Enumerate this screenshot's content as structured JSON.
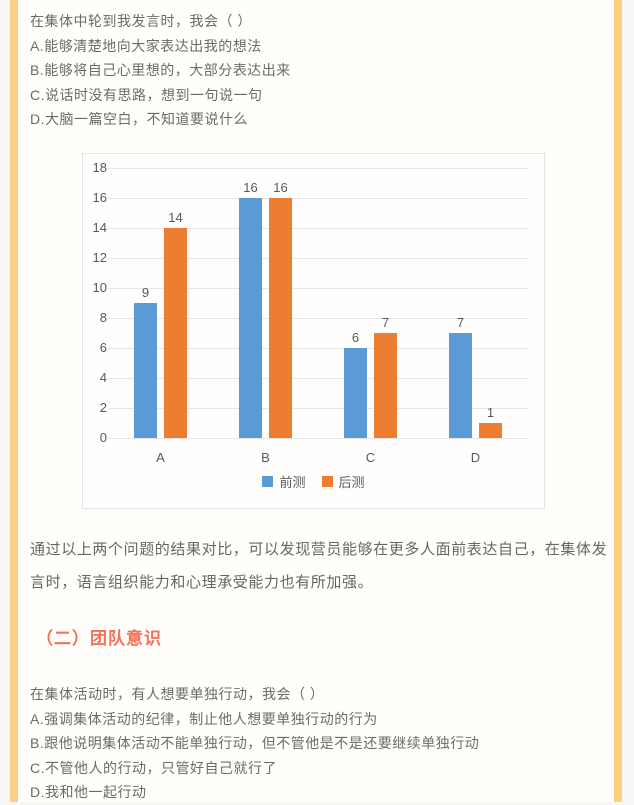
{
  "page": {
    "question1": {
      "prompt": "在集体中轮到我发言时，我会（  ）",
      "options": [
        "A.能够清楚地向大家表达出我的想法",
        "B.能够将自己心里想的，大部分表达出来",
        "C.说话时没有思路，想到一句说一句",
        "D.大脑一篇空白，不知道要说什么"
      ]
    },
    "summary": "通过以上两个问题的结果对比，可以发现营员能够在更多人面前表达自己，在集体发言时，语言组织能力和心理承受能力也有所加强。",
    "section_heading": "（二）团队意识",
    "question2": {
      "prompt": "在集体活动时，有人想要单独行动，我会（  ）",
      "options": [
        "A.强调集体活动的纪律，制止他人想要单独行动的行为",
        "B.跟他说明集体活动不能单独行动，但不管他是不是还要继续单独行动",
        "C.不管他人的行动，只管好自己就行了",
        "D.我和他一起行动"
      ]
    }
  },
  "chart_data": {
    "type": "bar",
    "title": "",
    "xlabel": "",
    "ylabel": "",
    "categories": [
      "A",
      "B",
      "C",
      "D"
    ],
    "series": [
      {
        "name": "前测",
        "color": "#5b9bd5",
        "values": [
          9,
          16,
          6,
          7
        ]
      },
      {
        "name": "后测",
        "color": "#ed7d31",
        "values": [
          14,
          16,
          7,
          1
        ]
      }
    ],
    "ylim": [
      0,
      18
    ],
    "ytick_step": 2,
    "grid": true,
    "legend_position": "bottom"
  },
  "colors": {
    "page_border": "#fdcf7e",
    "heading_accent": "#f4705b",
    "body_text": "#6b6b6b",
    "chart_label": "#595959",
    "series_blue": "#5b9bd5",
    "series_orange": "#ed7d31"
  }
}
